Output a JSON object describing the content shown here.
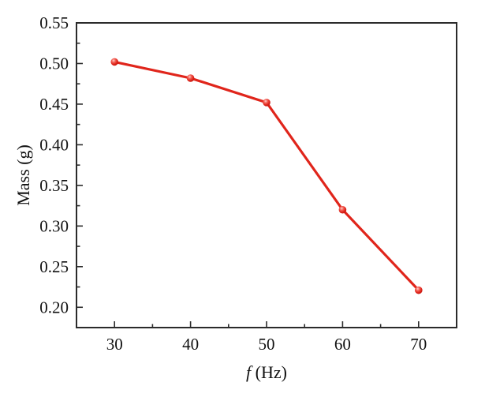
{
  "figure": {
    "background": "#ffffff",
    "text_color": "#111111"
  },
  "chart_data": {
    "type": "line",
    "title": "",
    "xlabel": "f (Hz)",
    "xlabel_parts": {
      "italic": "f",
      "rest": " (Hz)"
    },
    "ylabel": "Mass (g)",
    "x": [
      30,
      40,
      50,
      60,
      70
    ],
    "series": [
      {
        "name": "mass-vs-frequency",
        "color": "#e0251b",
        "marker": "sphere",
        "marker_highlight": "#ffd3cd",
        "marker_dark": "#b5130c",
        "values": [
          0.502,
          0.482,
          0.452,
          0.32,
          0.221
        ]
      }
    ],
    "xlim": [
      25,
      75
    ],
    "ylim": [
      0.175,
      0.55
    ],
    "x_major_ticks": {
      "values": [
        30,
        40,
        50,
        60,
        70
      ],
      "labels": [
        "30",
        "40",
        "50",
        "60",
        "70"
      ]
    },
    "x_minor_ticks": [
      35,
      45,
      55,
      65
    ],
    "y_major_ticks": {
      "values": [
        0.2,
        0.25,
        0.3,
        0.35,
        0.4,
        0.45,
        0.5,
        0.55
      ],
      "labels": [
        "0.20",
        "0.25",
        "0.30",
        "0.35",
        "0.40",
        "0.45",
        "0.50",
        "0.55"
      ]
    },
    "y_minor_ticks": [
      0.225,
      0.275,
      0.325,
      0.375,
      0.425,
      0.475,
      0.525
    ],
    "grid": false,
    "legend": "none",
    "tick_direction": "in",
    "frame_color": "#2b2b2b"
  }
}
